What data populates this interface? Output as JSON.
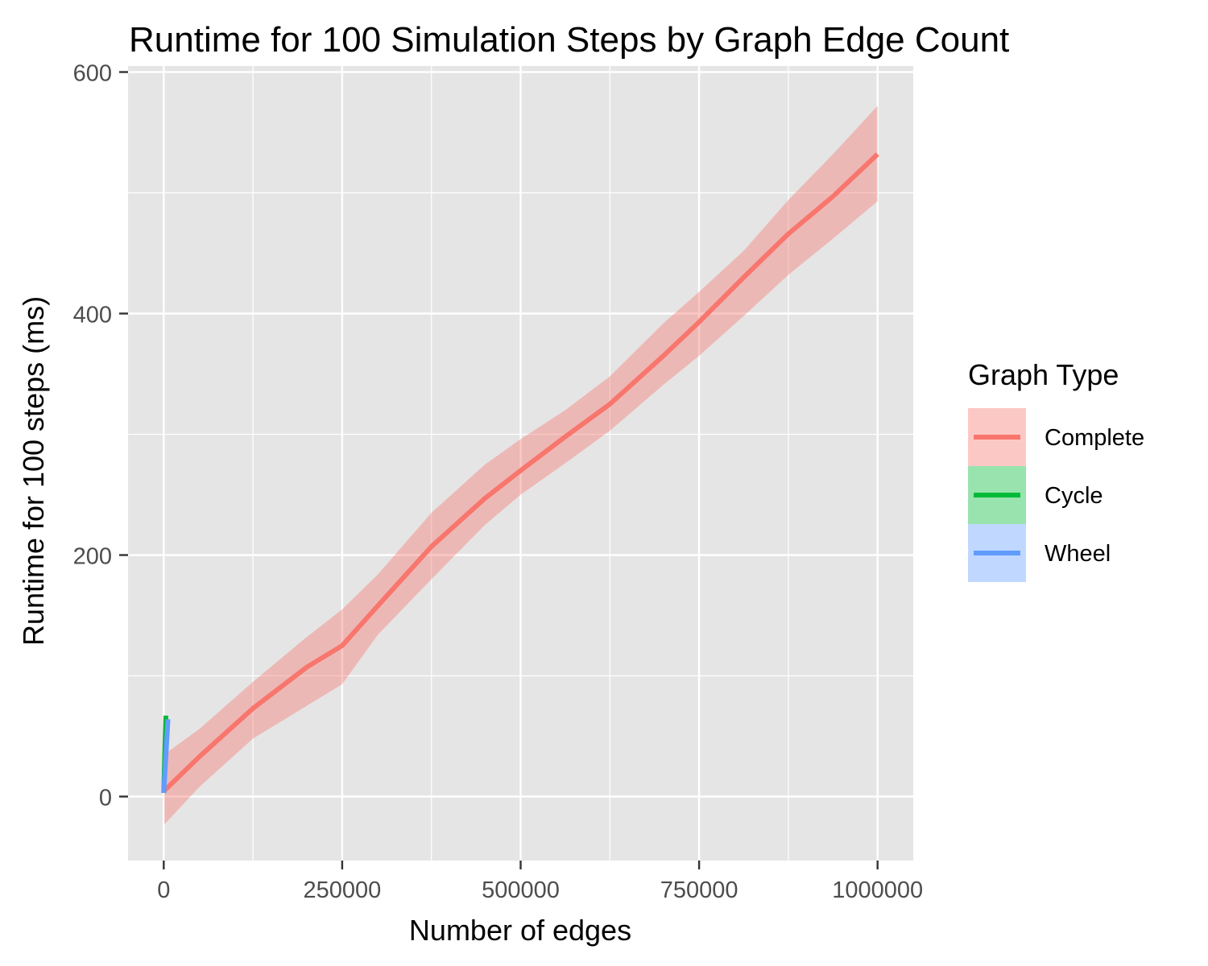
{
  "chart_data": {
    "type": "line",
    "title": "Runtime for 100 Simulation Steps by Graph Edge Count",
    "xlabel": "Number of edges",
    "ylabel": "Runtime for 100 steps (ms)",
    "xlim": [
      -50000,
      1050000
    ],
    "ylim": [
      -53,
      605
    ],
    "x_ticks": [
      0,
      250000,
      500000,
      750000,
      1000000
    ],
    "x_tick_labels": [
      "0",
      "250000",
      "500000",
      "750000",
      "1000000"
    ],
    "y_ticks": [
      0,
      200,
      400,
      600
    ],
    "y_tick_labels": [
      "0",
      "200",
      "400",
      "600"
    ],
    "grid": true,
    "legend": {
      "title": "Graph Type",
      "position": "right"
    },
    "series": [
      {
        "name": "Complete",
        "color": "#F8766D",
        "x": [
          1000,
          50000,
          125000,
          200000,
          250000,
          300000,
          375000,
          450000,
          500000,
          562500,
          625000,
          700000,
          750000,
          812500,
          875000,
          937500,
          1000000
        ],
        "y": [
          5,
          33,
          73,
          107,
          125,
          158,
          207,
          247,
          270,
          298,
          325,
          365,
          393,
          430,
          466,
          497,
          532
        ],
        "lower": [
          -23,
          8,
          48,
          75,
          93,
          134,
          180,
          225,
          250,
          276,
          303,
          341,
          365,
          398,
          432,
          462,
          493
        ],
        "upper": [
          35,
          56,
          95,
          132,
          155,
          184,
          235,
          275,
          296,
          320,
          348,
          392,
          418,
          452,
          494,
          532,
          572
        ]
      },
      {
        "name": "Cycle",
        "color": "#00BA38",
        "x": [
          0,
          1500,
          3000
        ],
        "y": [
          3,
          35,
          67
        ],
        "lower": [
          2,
          34,
          65
        ],
        "upper": [
          4,
          36,
          69
        ]
      },
      {
        "name": "Wheel",
        "color": "#619CFF",
        "x": [
          0,
          3000,
          6000
        ],
        "y": [
          3,
          34,
          64
        ],
        "lower": [
          2,
          33,
          62
        ],
        "upper": [
          4,
          35,
          66
        ]
      }
    ]
  }
}
